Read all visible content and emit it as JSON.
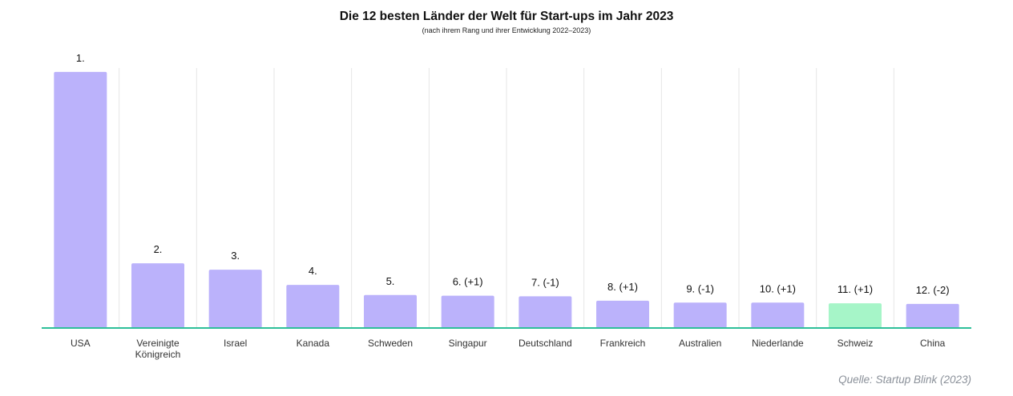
{
  "title": "Die 12 besten Länder der Welt für Start-ups im Jahr 2023",
  "subtitle": "(nach ihrem Rang und ihrer Entwicklung 2022–2023)",
  "source": "Quelle: Startup Blink (2023)",
  "colors": {
    "bar": "#bbb2fb",
    "highlight": "#a6f5c8",
    "axis": "#2ebf9a",
    "grid": "#e6e6e6",
    "text": "#333333"
  },
  "chart_data": {
    "type": "bar",
    "title": "Die 12 besten Länder der Welt für Start-ups im Jahr 2023",
    "subtitle": "(nach ihrem Rang und ihrer Entwicklung 2022–2023)",
    "categories": [
      "USA",
      "Vereinigte Königreich",
      "Israel",
      "Kanada",
      "Schweden",
      "Singapur",
      "Deutschland",
      "Frankreich",
      "Australien",
      "Niederlande",
      "Schweiz",
      "China"
    ],
    "category_lines": [
      [
        "USA"
      ],
      [
        "Vereinigte",
        "Königreich"
      ],
      [
        "Israel"
      ],
      [
        "Kanada"
      ],
      [
        "Schweden"
      ],
      [
        "Singapur"
      ],
      [
        "Deutschland"
      ],
      [
        "Frankreich"
      ],
      [
        "Australien"
      ],
      [
        "Niederlande"
      ],
      [
        "Schweiz"
      ],
      [
        "China"
      ]
    ],
    "values": [
      202,
      51,
      46,
      34,
      26,
      25.5,
      25,
      21.5,
      20,
      20,
      19.5,
      19
    ],
    "labels": [
      "1.",
      "2.",
      "3.",
      "4.",
      "5.",
      "6. (+1)",
      "7. (-1)",
      "8. (+1)",
      "9. (-1)",
      "10. (+1)",
      "11. (+1)",
      "12. (-2)"
    ],
    "highlight": [
      "Schweiz"
    ],
    "ylim": [
      0,
      210
    ],
    "grid": "vertical",
    "xlabel": "",
    "ylabel": ""
  }
}
